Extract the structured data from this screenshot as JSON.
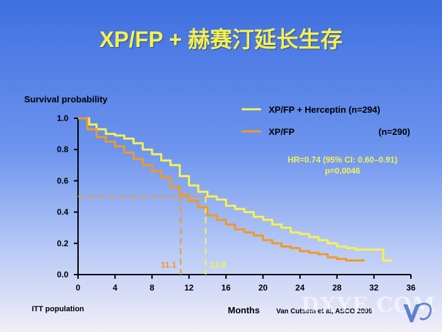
{
  "slide": {
    "title": "XP/FP + 赫赛汀延长生存",
    "footer_left": "ITT population",
    "footer_right": "Van Cutsem et al, ASCO 2009",
    "watermark": "DXYE.COM"
  },
  "chart_data": {
    "type": "line",
    "title": "",
    "ylabel": "Survival probability",
    "xlabel": "Months",
    "xlim": [
      0,
      36
    ],
    "ylim": [
      0,
      1
    ],
    "xticks": [
      "0",
      "4",
      "8",
      "12",
      "16",
      "20",
      "24",
      "28",
      "32",
      "36"
    ],
    "yticks": [
      "0.0",
      "0.2",
      "0.4",
      "0.6",
      "0.8",
      "1.0"
    ],
    "legend_position": "top-right",
    "series": [
      {
        "name": "XP/FP + Herceptin (n=294)",
        "color": "#f6f252",
        "points": [
          [
            0,
            1.0
          ],
          [
            0.8,
            1.0
          ],
          [
            1.2,
            0.96
          ],
          [
            2,
            0.93
          ],
          [
            3,
            0.9
          ],
          [
            4,
            0.89
          ],
          [
            5,
            0.87
          ],
          [
            6,
            0.84
          ],
          [
            7,
            0.8
          ],
          [
            8,
            0.77
          ],
          [
            9,
            0.73
          ],
          [
            10,
            0.7
          ],
          [
            11,
            0.63
          ],
          [
            12,
            0.57
          ],
          [
            13,
            0.53
          ],
          [
            14,
            0.5
          ],
          [
            15,
            0.48
          ],
          [
            16,
            0.44
          ],
          [
            17,
            0.42
          ],
          [
            18,
            0.4
          ],
          [
            19,
            0.37
          ],
          [
            20,
            0.35
          ],
          [
            21,
            0.32
          ],
          [
            22,
            0.3
          ],
          [
            23,
            0.27
          ],
          [
            24,
            0.26
          ],
          [
            25,
            0.24
          ],
          [
            26,
            0.22
          ],
          [
            27,
            0.2
          ],
          [
            28,
            0.18
          ],
          [
            29,
            0.17
          ],
          [
            30,
            0.16
          ],
          [
            31,
            0.16
          ],
          [
            33,
            0.16
          ],
          [
            33,
            0.09
          ],
          [
            34,
            0.09
          ]
        ]
      },
      {
        "name": "XP/FP",
        "n_label": "(n=290)",
        "color": "#ef9a28",
        "points": [
          [
            0,
            1.0
          ],
          [
            0.6,
            1.0
          ],
          [
            1,
            0.93
          ],
          [
            2,
            0.88
          ],
          [
            3,
            0.85
          ],
          [
            4,
            0.82
          ],
          [
            5,
            0.78
          ],
          [
            6,
            0.74
          ],
          [
            7,
            0.7
          ],
          [
            8,
            0.66
          ],
          [
            9,
            0.62
          ],
          [
            10,
            0.56
          ],
          [
            11,
            0.51
          ],
          [
            12,
            0.47
          ],
          [
            13,
            0.43
          ],
          [
            14,
            0.38
          ],
          [
            15,
            0.35
          ],
          [
            16,
            0.32
          ],
          [
            17,
            0.29
          ],
          [
            18,
            0.27
          ],
          [
            19,
            0.25
          ],
          [
            20,
            0.22
          ],
          [
            21,
            0.2
          ],
          [
            22,
            0.18
          ],
          [
            23,
            0.17
          ],
          [
            24,
            0.15
          ],
          [
            25,
            0.14
          ],
          [
            26,
            0.13
          ],
          [
            27,
            0.11
          ],
          [
            28,
            0.1
          ],
          [
            29,
            0.09
          ],
          [
            31,
            0.09
          ]
        ]
      }
    ],
    "median_line": {
      "y": 0.5,
      "medians": [
        {
          "x": 11.1,
          "label": "11.1",
          "color": "#ef9a28"
        },
        {
          "x": 13.8,
          "label": "13.8",
          "color": "#f6f252"
        }
      ]
    },
    "annotation": {
      "line1": "HR=0.74 (95% CI: 0.60–0.91)",
      "line2": "p=0.0046",
      "color": "#f6f252"
    }
  }
}
